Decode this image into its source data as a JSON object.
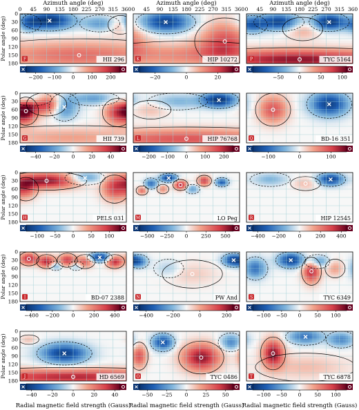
{
  "figure": {
    "top_axis_label": "Azimuth angle (deg)",
    "left_axis_label": "Polar angle (deg)",
    "bottom_axis_label": "Radial magnetic field strength (Gauss)",
    "azimuth_ticks": [
      "0",
      "45",
      "90",
      "135",
      "180",
      "225",
      "270",
      "315",
      "360"
    ],
    "polar_ticks": [
      "0",
      "30",
      "60",
      "90",
      "120",
      "150",
      "180"
    ],
    "colors": {
      "negative": "#1f5fb4",
      "positive": "#b40d1e",
      "neutral": "#f7f7f7",
      "contour": "#000000",
      "grid": "#9ecfd6"
    }
  },
  "chart_data": [
    {
      "type": "heatmap",
      "letter": "F",
      "star": "HII 296",
      "colorbar_ticks": [
        "-200",
        "-100",
        "0",
        "100",
        "200"
      ],
      "clim": [
        -250,
        250
      ],
      "xlim": [
        0,
        360
      ],
      "ylim": [
        180,
        0
      ],
      "blobs": [
        {
          "x": 100,
          "y": 25,
          "v": -1.0,
          "sx": 55,
          "sy": 22
        },
        {
          "x": 20,
          "y": 35,
          "v": -0.5,
          "sx": 30,
          "sy": 20
        },
        {
          "x": 270,
          "y": 35,
          "v": -0.4,
          "sx": 40,
          "sy": 18
        },
        {
          "x": 200,
          "y": 150,
          "v": 0.5,
          "sx": 220,
          "sy": 35
        },
        {
          "x": 340,
          "y": 40,
          "v": 0.4,
          "sx": 25,
          "sy": 20
        }
      ]
    },
    {
      "type": "heatmap",
      "letter": "K",
      "star": "HIP 10272",
      "colorbar_ticks": [
        "-20",
        "0",
        "20"
      ],
      "clim": [
        -30,
        30
      ],
      "xlim": [
        0,
        360
      ],
      "ylim": [
        180,
        0
      ],
      "blobs": [
        {
          "x": 110,
          "y": 30,
          "v": -0.9,
          "sx": 60,
          "sy": 25
        },
        {
          "x": 310,
          "y": 100,
          "v": 0.6,
          "sx": 60,
          "sy": 50
        },
        {
          "x": 180,
          "y": 150,
          "v": 0.4,
          "sx": 200,
          "sy": 30
        }
      ]
    },
    {
      "type": "heatmap",
      "letter": "P",
      "star": "TYC 5164",
      "colorbar_ticks": [
        "-50",
        "0",
        "50",
        "100"
      ],
      "clim": [
        -110,
        110
      ],
      "xlim": [
        0,
        360
      ],
      "ylim": [
        180,
        0
      ],
      "blobs": [
        {
          "x": 110,
          "y": 30,
          "v": -0.9,
          "sx": 50,
          "sy": 20
        },
        {
          "x": 280,
          "y": 30,
          "v": -1.0,
          "sx": 40,
          "sy": 20
        },
        {
          "x": 20,
          "y": 40,
          "v": -0.6,
          "sx": 30,
          "sy": 20
        },
        {
          "x": 180,
          "y": 165,
          "v": 0.9,
          "sx": 250,
          "sy": 25
        },
        {
          "x": 190,
          "y": 55,
          "v": 0.3,
          "sx": 40,
          "sy": 25
        }
      ]
    },
    {
      "type": "heatmap",
      "letter": "G",
      "star": "HII 739",
      "colorbar_ticks": [
        "-40",
        "-20",
        "0",
        "20",
        "40"
      ],
      "clim": [
        -50,
        50
      ],
      "xlim": [
        0,
        360
      ],
      "ylim": [
        180,
        0
      ],
      "blobs": [
        {
          "x": 20,
          "y": 65,
          "v": 0.9,
          "sx": 25,
          "sy": 30
        },
        {
          "x": 90,
          "y": 40,
          "v": 0.8,
          "sx": 40,
          "sy": 25
        },
        {
          "x": 330,
          "y": 70,
          "v": 0.7,
          "sx": 30,
          "sy": 30
        },
        {
          "x": 150,
          "y": 50,
          "v": -0.6,
          "sx": 30,
          "sy": 30
        },
        {
          "x": 250,
          "y": 20,
          "v": -0.4,
          "sx": 50,
          "sy": 15
        },
        {
          "x": 40,
          "y": 20,
          "v": -0.4,
          "sx": 40,
          "sy": 15
        },
        {
          "x": 180,
          "y": 160,
          "v": 0.3,
          "sx": 200,
          "sy": 25
        }
      ]
    },
    {
      "type": "heatmap",
      "letter": "L",
      "star": "HIP 76768",
      "colorbar_ticks": [
        "-200",
        "-100",
        "0",
        "100",
        "200"
      ],
      "clim": [
        -250,
        250
      ],
      "xlim": [
        0,
        360
      ],
      "ylim": [
        180,
        0
      ],
      "blobs": [
        {
          "x": 290,
          "y": 25,
          "v": -1.0,
          "sx": 40,
          "sy": 18
        },
        {
          "x": 150,
          "y": 30,
          "v": -0.3,
          "sx": 60,
          "sy": 18
        },
        {
          "x": 180,
          "y": 165,
          "v": 0.6,
          "sx": 250,
          "sy": 25
        },
        {
          "x": 60,
          "y": 60,
          "v": 0.2,
          "sx": 40,
          "sy": 20
        }
      ]
    },
    {
      "type": "heatmap",
      "letter": "Q",
      "star": "BD-16 351",
      "colorbar_ticks": [
        "-100",
        "0",
        "100"
      ],
      "clim": [
        -150,
        150
      ],
      "xlim": [
        0,
        360
      ],
      "ylim": [
        180,
        0
      ],
      "blobs": [
        {
          "x": 280,
          "y": 40,
          "v": -0.9,
          "sx": 45,
          "sy": 30
        },
        {
          "x": 90,
          "y": 60,
          "v": 0.6,
          "sx": 35,
          "sy": 35
        }
      ]
    },
    {
      "type": "heatmap",
      "letter": "H",
      "star": "PELS 031",
      "colorbar_ticks": [
        "-100",
        "-50",
        "0",
        "50",
        "100"
      ],
      "clim": [
        -130,
        130
      ],
      "xlim": [
        0,
        360
      ],
      "ylim": [
        180,
        0
      ],
      "blobs": [
        {
          "x": 90,
          "y": 30,
          "v": 0.9,
          "sx": 80,
          "sy": 20
        },
        {
          "x": 20,
          "y": 60,
          "v": 0.5,
          "sx": 25,
          "sy": 25
        },
        {
          "x": 320,
          "y": 60,
          "v": 0.6,
          "sx": 30,
          "sy": 30
        },
        {
          "x": 220,
          "y": 20,
          "v": -0.5,
          "sx": 40,
          "sy": 15
        }
      ]
    },
    {
      "type": "heatmap",
      "letter": "M",
      "star": "LO Peg",
      "colorbar_ticks": [
        "-500",
        "-250",
        "0",
        "250",
        "500"
      ],
      "clim": [
        -600,
        600
      ],
      "xlim": [
        0,
        360
      ],
      "ylim": [
        180,
        0
      ],
      "blobs": [
        {
          "x": 120,
          "y": 20,
          "v": -0.9,
          "sx": 20,
          "sy": 10
        },
        {
          "x": 160,
          "y": 45,
          "v": 0.8,
          "sx": 15,
          "sy": 12
        },
        {
          "x": 60,
          "y": 40,
          "v": -0.6,
          "sx": 15,
          "sy": 12
        },
        {
          "x": 240,
          "y": 30,
          "v": 0.7,
          "sx": 15,
          "sy": 12
        },
        {
          "x": 300,
          "y": 35,
          "v": -0.7,
          "sx": 15,
          "sy": 10
        },
        {
          "x": 200,
          "y": 60,
          "v": -0.4,
          "sx": 15,
          "sy": 10
        },
        {
          "x": 30,
          "y": 65,
          "v": 0.5,
          "sx": 12,
          "sy": 10
        },
        {
          "x": 100,
          "y": 60,
          "v": 0.4,
          "sx": 12,
          "sy": 10
        }
      ]
    },
    {
      "type": "heatmap",
      "letter": "R",
      "star": "HIP 12545",
      "colorbar_ticks": [
        "-400",
        "-200",
        "0",
        "200",
        "400"
      ],
      "clim": [
        -450,
        450
      ],
      "xlim": [
        0,
        360
      ],
      "ylim": [
        180,
        0
      ],
      "blobs": [
        {
          "x": 285,
          "y": 25,
          "v": -0.9,
          "sx": 30,
          "sy": 15
        },
        {
          "x": 80,
          "y": 25,
          "v": -0.3,
          "sx": 40,
          "sy": 15
        },
        {
          "x": 200,
          "y": 40,
          "v": 0.2,
          "sx": 30,
          "sy": 15
        }
      ]
    },
    {
      "type": "heatmap",
      "letter": "I",
      "star": "BD-07 2388",
      "colorbar_ticks": [
        "-400",
        "-200",
        "0",
        "200",
        "400"
      ],
      "clim": [
        -450,
        450
      ],
      "xlim": [
        0,
        360
      ],
      "ylim": [
        180,
        0
      ],
      "blobs": [
        {
          "x": 270,
          "y": 20,
          "v": -0.9,
          "sx": 25,
          "sy": 12
        },
        {
          "x": 30,
          "y": 25,
          "v": 0.8,
          "sx": 20,
          "sy": 15
        },
        {
          "x": 90,
          "y": 35,
          "v": 0.8,
          "sx": 20,
          "sy": 15
        },
        {
          "x": 160,
          "y": 30,
          "v": 0.7,
          "sx": 20,
          "sy": 15
        },
        {
          "x": 220,
          "y": 35,
          "v": 0.6,
          "sx": 20,
          "sy": 15
        },
        {
          "x": 320,
          "y": 35,
          "v": 0.8,
          "sx": 20,
          "sy": 15
        },
        {
          "x": 120,
          "y": 50,
          "v": -0.4,
          "sx": 15,
          "sy": 10
        },
        {
          "x": 190,
          "y": 50,
          "v": -0.3,
          "sx": 15,
          "sy": 10
        }
      ]
    },
    {
      "type": "heatmap",
      "letter": "N",
      "star": "PW And",
      "colorbar_ticks": [
        "-400",
        "-200",
        "0",
        "200"
      ],
      "clim": [
        -450,
        250
      ],
      "xlim": [
        0,
        360
      ],
      "ylim": [
        180,
        0
      ],
      "blobs": [
        {
          "x": 340,
          "y": 30,
          "v": -0.9,
          "sx": 25,
          "sy": 15
        },
        {
          "x": 20,
          "y": 35,
          "v": -0.5,
          "sx": 20,
          "sy": 15
        },
        {
          "x": 120,
          "y": 60,
          "v": -0.2,
          "sx": 30,
          "sy": 20
        },
        {
          "x": 200,
          "y": 80,
          "v": 0.15,
          "sx": 60,
          "sy": 30
        }
      ]
    },
    {
      "type": "heatmap",
      "letter": "S",
      "star": "TYC 6349",
      "colorbar_ticks": [
        "-100",
        "-50",
        "0",
        "50",
        "100"
      ],
      "clim": [
        -130,
        130
      ],
      "xlim": [
        0,
        360
      ],
      "ylim": [
        180,
        0
      ],
      "blobs": [
        {
          "x": 150,
          "y": 30,
          "v": -0.9,
          "sx": 30,
          "sy": 18
        },
        {
          "x": 30,
          "y": 60,
          "v": -0.6,
          "sx": 25,
          "sy": 25
        },
        {
          "x": 240,
          "y": 35,
          "v": -0.5,
          "sx": 25,
          "sy": 15
        },
        {
          "x": 220,
          "y": 70,
          "v": 0.8,
          "sx": 20,
          "sy": 30
        },
        {
          "x": 300,
          "y": 60,
          "v": 0.3,
          "sx": 20,
          "sy": 20
        }
      ]
    },
    {
      "type": "heatmap",
      "letter": "J",
      "star": "HD 6569",
      "colorbar_ticks": [
        "-40",
        "-20",
        "0",
        "20",
        "40"
      ],
      "clim": [
        -45,
        45
      ],
      "xlim": [
        0,
        360
      ],
      "ylim": [
        180,
        0
      ],
      "blobs": [
        {
          "x": 150,
          "y": 80,
          "v": -0.9,
          "sx": 55,
          "sy": 25
        },
        {
          "x": 180,
          "y": 165,
          "v": 0.8,
          "sx": 260,
          "sy": 20
        },
        {
          "x": 30,
          "y": 30,
          "v": 0.2,
          "sx": 20,
          "sy": 10
        }
      ]
    },
    {
      "type": "heatmap",
      "letter": "O",
      "star": "TYC 0486",
      "colorbar_ticks": [
        "-50",
        "-25",
        "0",
        "25",
        "50"
      ],
      "clim": [
        -60,
        60
      ],
      "xlim": [
        0,
        360
      ],
      "ylim": [
        180,
        0
      ],
      "blobs": [
        {
          "x": 230,
          "y": 95,
          "v": 0.9,
          "sx": 45,
          "sy": 35
        },
        {
          "x": 20,
          "y": 90,
          "v": 0.6,
          "sx": 18,
          "sy": 30
        },
        {
          "x": 100,
          "y": 40,
          "v": -0.8,
          "sx": 25,
          "sy": 20
        },
        {
          "x": 330,
          "y": 40,
          "v": -0.5,
          "sx": 25,
          "sy": 20
        }
      ]
    },
    {
      "type": "heatmap",
      "letter": "T",
      "star": "TYC 6878",
      "colorbar_ticks": [
        "-100",
        "-50",
        "0",
        "50",
        "100"
      ],
      "clim": [
        -130,
        130
      ],
      "xlim": [
        0,
        360
      ],
      "ylim": [
        180,
        0
      ],
      "blobs": [
        {
          "x": 90,
          "y": 80,
          "v": 0.9,
          "sx": 25,
          "sy": 35
        },
        {
          "x": 200,
          "y": 20,
          "v": -0.6,
          "sx": 40,
          "sy": 18
        },
        {
          "x": 320,
          "y": 30,
          "v": -0.5,
          "sx": 30,
          "sy": 18
        },
        {
          "x": 200,
          "y": 130,
          "v": 0.2,
          "sx": 100,
          "sy": 30
        }
      ]
    }
  ]
}
